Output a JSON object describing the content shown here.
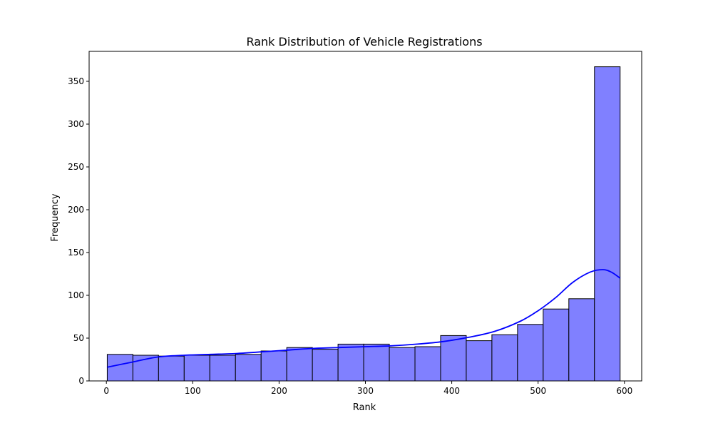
{
  "chart_data": {
    "type": "bar",
    "subtype": "histogram_with_kde",
    "title": "Rank Distribution of Vehicle Registrations",
    "xlabel": "Rank",
    "ylabel": "Frequency",
    "xlim": [
      -20,
      620
    ],
    "ylim": [
      0,
      385
    ],
    "xticks": [
      0,
      100,
      200,
      300,
      400,
      500,
      600
    ],
    "yticks": [
      0,
      50,
      100,
      150,
      200,
      250,
      300,
      350
    ],
    "bin_edges": [
      1,
      30.7,
      60.4,
      90.1,
      119.8,
      149.5,
      179.2,
      208.9,
      238.6,
      268.3,
      298,
      327.7,
      357.4,
      387.1,
      416.8,
      446.5,
      476.2,
      505.9,
      535.6,
      565.3,
      595
    ],
    "values": [
      31,
      30,
      29,
      30,
      30,
      31,
      35,
      39,
      37,
      43,
      43,
      39,
      40,
      53,
      47,
      54,
      66,
      84,
      96,
      367
    ],
    "kde": {
      "x": [
        1,
        30,
        60,
        90,
        120,
        150,
        180,
        210,
        240,
        270,
        300,
        330,
        360,
        390,
        420,
        450,
        480,
        500,
        520,
        540,
        560,
        575,
        585,
        595
      ],
      "y": [
        16,
        22,
        28,
        30,
        31,
        32,
        34,
        36,
        38,
        39,
        40,
        41,
        43,
        46,
        51,
        58,
        70,
        82,
        97,
        115,
        127,
        130,
        127,
        120
      ]
    },
    "colors": {
      "bar_fill": "#8080ff",
      "bar_edge": "#000000",
      "kde_line": "#0000ff"
    },
    "grid": false,
    "legend": "none"
  }
}
